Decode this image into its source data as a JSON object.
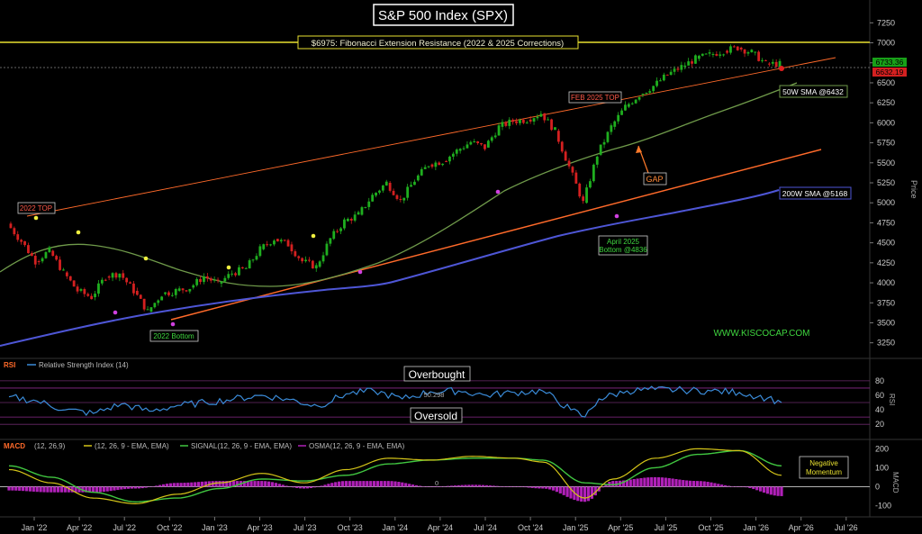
{
  "chart_data": {
    "type": "candlestick",
    "title": "S&P 500 Index (SPX)",
    "price_axis_label": "Price",
    "price_ticks": [
      3250,
      3500,
      3750,
      4000,
      4250,
      4500,
      4750,
      5000,
      5250,
      5500,
      5750,
      6000,
      6250,
      6500,
      6750,
      7000,
      7250
    ],
    "price_ylim": [
      3100,
      7400
    ],
    "x_ticks": [
      "Jan '22",
      "Apr '22",
      "Jul '22",
      "Oct '22",
      "Jan '23",
      "Apr '23",
      "Jul '23",
      "Oct '23",
      "Jan '24",
      "Apr '24",
      "Jul '24",
      "Oct '24",
      "Jan '25",
      "Apr '25",
      "Jul '25",
      "Oct '25",
      "Jan '26",
      "Apr '26",
      "Jul '26"
    ],
    "price_series": [
      [
        0,
        4740
      ],
      [
        1,
        4520
      ],
      [
        2,
        4270
      ],
      [
        3,
        4400
      ],
      [
        4,
        4130
      ],
      [
        5,
        3900
      ],
      [
        6,
        3820
      ],
      [
        7,
        4080
      ],
      [
        8,
        4120
      ],
      [
        9,
        3900
      ],
      [
        10,
        3640
      ],
      [
        11,
        3860
      ],
      [
        12,
        3900
      ],
      [
        13,
        3940
      ],
      [
        14,
        4080
      ],
      [
        15,
        3990
      ],
      [
        16,
        4120
      ],
      [
        17,
        4180
      ],
      [
        18,
        4420
      ],
      [
        19,
        4550
      ],
      [
        20,
        4480
      ],
      [
        21,
        4270
      ],
      [
        22,
        4200
      ],
      [
        23,
        4550
      ],
      [
        24,
        4770
      ],
      [
        25,
        4850
      ],
      [
        26,
        5090
      ],
      [
        27,
        5250
      ],
      [
        28,
        5030
      ],
      [
        29,
        5280
      ],
      [
        30,
        5480
      ],
      [
        31,
        5520
      ],
      [
        32,
        5650
      ],
      [
        33,
        5760
      ],
      [
        34,
        5690
      ],
      [
        35,
        5950
      ],
      [
        36,
        6020
      ],
      [
        37,
        6040
      ],
      [
        38,
        6120
      ],
      [
        39,
        5900
      ],
      [
        40,
        5450
      ],
      [
        41,
        5000
      ],
      [
        42,
        5600
      ],
      [
        43,
        5950
      ],
      [
        44,
        6200
      ],
      [
        45,
        6350
      ],
      [
        46,
        6460
      ],
      [
        47,
        6600
      ],
      [
        48,
        6700
      ],
      [
        49,
        6800
      ],
      [
        50,
        6850
      ],
      [
        51,
        6900
      ],
      [
        52,
        6940
      ],
      [
        53,
        6880
      ],
      [
        54,
        6740
      ],
      [
        55,
        6733
      ]
    ],
    "lines": {
      "resistance": {
        "level": 6975,
        "label": "$6975: Fibonacci Extension Resistance (2022 & 2025 Corrections)"
      },
      "sma50w": {
        "label": "50W SMA @6432"
      },
      "sma200w": {
        "label": "200W SMA @5168"
      }
    },
    "price_labels": {
      "current": "6733.36",
      "prior": "6632.19"
    },
    "annotations": {
      "top_2022": "2022 TOP",
      "bottom_2022": "2022 Bottom",
      "top_feb_2025": "FEB 2025 TOP",
      "bottom_apr_2025": [
        "April 2025",
        "Bottom @4836"
      ],
      "gap": "GAP",
      "website": "WWW.KISCOCAP.COM"
    },
    "rsi": {
      "label": "RSI",
      "legend": "Relative Strength Index (14)",
      "ticks": [
        20,
        40,
        60,
        80
      ],
      "ylim": [
        14,
        96
      ],
      "axis_label": "RSI",
      "value_label": "50.298",
      "overbought_label": "Overbought",
      "oversold_label": "Oversold",
      "levels": [
        80,
        70,
        50,
        30,
        20
      ],
      "series": [
        [
          0,
          58
        ],
        [
          2,
          52
        ],
        [
          4,
          40
        ],
        [
          6,
          35
        ],
        [
          8,
          48
        ],
        [
          10,
          38
        ],
        [
          12,
          46
        ],
        [
          14,
          50
        ],
        [
          16,
          55
        ],
        [
          18,
          60
        ],
        [
          20,
          54
        ],
        [
          22,
          45
        ],
        [
          24,
          62
        ],
        [
          26,
          66
        ],
        [
          28,
          55
        ],
        [
          30,
          65
        ],
        [
          32,
          66
        ],
        [
          34,
          60
        ],
        [
          36,
          64
        ],
        [
          38,
          66
        ],
        [
          40,
          40
        ],
        [
          41,
          30
        ],
        [
          42,
          55
        ],
        [
          44,
          66
        ],
        [
          46,
          68
        ],
        [
          48,
          67
        ],
        [
          50,
          66
        ],
        [
          52,
          64
        ],
        [
          54,
          56
        ],
        [
          55,
          50
        ]
      ]
    },
    "macd": {
      "label": "MACD",
      "params": "(12, 26,9)",
      "legend_macd": "(12, 26, 9 - EMA, EMA)",
      "legend_signal": "SIGNAL(12, 26, 9 - EMA, EMA)",
      "legend_osma": "OSMA(12, 26, 9 - EMA, EMA)",
      "ticks": [
        -100,
        0,
        100,
        200
      ],
      "ylim": [
        -150,
        230
      ],
      "axis_label": "MACD",
      "zero_label": "0",
      "note": [
        "Negative",
        "Momentum"
      ],
      "macd_series": [
        [
          0,
          90
        ],
        [
          3,
          20
        ],
        [
          6,
          -60
        ],
        [
          9,
          -90
        ],
        [
          12,
          -40
        ],
        [
          15,
          20
        ],
        [
          18,
          70
        ],
        [
          21,
          20
        ],
        [
          24,
          90
        ],
        [
          27,
          150
        ],
        [
          30,
          140
        ],
        [
          33,
          160
        ],
        [
          36,
          150
        ],
        [
          38,
          130
        ],
        [
          41,
          -60
        ],
        [
          43,
          40
        ],
        [
          46,
          150
        ],
        [
          49,
          200
        ],
        [
          52,
          190
        ],
        [
          55,
          60
        ]
      ],
      "signal_series": [
        [
          0,
          110
        ],
        [
          3,
          50
        ],
        [
          6,
          -30
        ],
        [
          9,
          -80
        ],
        [
          12,
          -60
        ],
        [
          15,
          -10
        ],
        [
          18,
          40
        ],
        [
          21,
          30
        ],
        [
          24,
          60
        ],
        [
          27,
          120
        ],
        [
          30,
          140
        ],
        [
          33,
          150
        ],
        [
          36,
          150
        ],
        [
          38,
          140
        ],
        [
          41,
          20
        ],
        [
          43,
          10
        ],
        [
          46,
          100
        ],
        [
          49,
          170
        ],
        [
          52,
          190
        ],
        [
          55,
          110
        ]
      ],
      "osma_series": [
        [
          0,
          -20
        ],
        [
          3,
          -30
        ],
        [
          6,
          -30
        ],
        [
          9,
          -10
        ],
        [
          12,
          20
        ],
        [
          15,
          30
        ],
        [
          18,
          30
        ],
        [
          21,
          -10
        ],
        [
          24,
          30
        ],
        [
          27,
          30
        ],
        [
          30,
          0
        ],
        [
          33,
          10
        ],
        [
          36,
          0
        ],
        [
          38,
          -10
        ],
        [
          41,
          -80
        ],
        [
          43,
          30
        ],
        [
          46,
          50
        ],
        [
          49,
          30
        ],
        [
          52,
          0
        ],
        [
          55,
          -50
        ]
      ]
    },
    "colors": {
      "up": "#1fae1f",
      "down": "#d42020",
      "resistance": "#e8e030",
      "sma50": "#6f9a4a",
      "sma200": "#4e56d6",
      "trend": "#ff6a2a",
      "rsi": "#3a8bd8",
      "macd": "#d4c418",
      "signal": "#40c640",
      "osma": "#b020b8"
    }
  }
}
